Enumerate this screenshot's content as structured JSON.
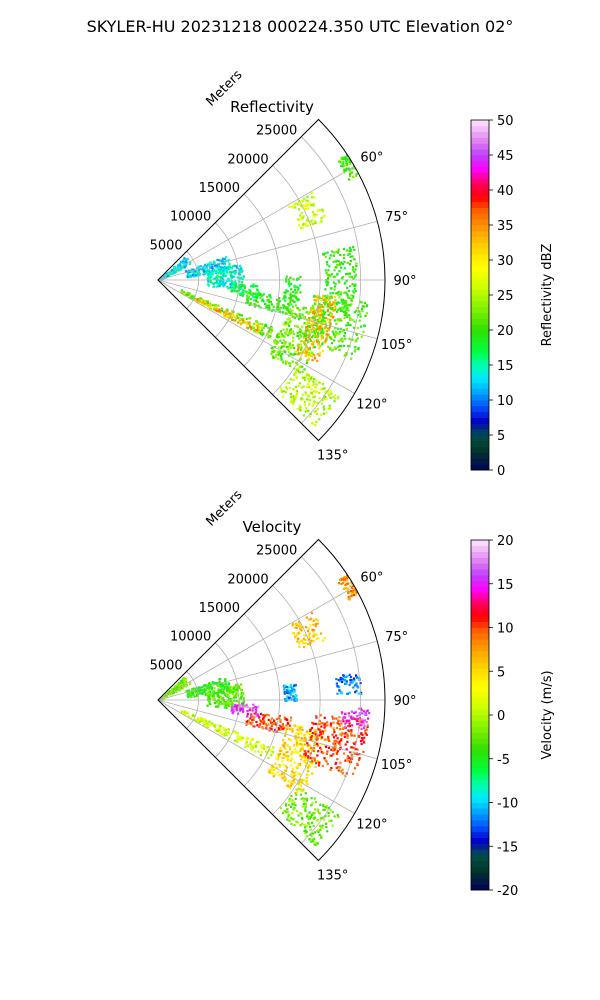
{
  "title": "SKYLER-HU  20231218  000224.350 UTC Elevation 02°",
  "chart_data": [
    {
      "type": "heatmap",
      "subtype": "polar-sector radar PPI",
      "title": "Reflectivity",
      "range_label": "Meters",
      "range_ticks": [
        5000,
        10000,
        15000,
        20000,
        25000
      ],
      "range_tick_labels": [
        "5000",
        "10000",
        "15000",
        "20000",
        "25000"
      ],
      "range_max": 28000,
      "azimuth_range_deg": [
        45,
        135
      ],
      "azimuth_ticks": [
        60,
        75,
        90,
        105,
        120,
        135
      ],
      "azimuth_tick_labels": [
        "60°",
        "75°",
        "90°",
        "105°",
        "120°",
        "135°"
      ],
      "colorbar": {
        "label": "Reflectivity dBZ",
        "min": 0,
        "max": 50,
        "ticks": [
          0,
          5,
          10,
          15,
          20,
          25,
          30,
          35,
          40,
          45,
          50
        ],
        "tick_labels": [
          "0",
          "5",
          "10",
          "15",
          "20",
          "25",
          "30",
          "35",
          "40",
          "45",
          "50"
        ]
      },
      "echo_regions": [
        {
          "az": [
            47,
            62
          ],
          "r": [
            0,
            4500
          ],
          "value": 13
        },
        {
          "az": [
            70,
            83
          ],
          "r": [
            3500,
            9000
          ],
          "value": 13
        },
        {
          "az": [
            78,
            96
          ],
          "r": [
            6000,
            10500
          ],
          "value": 14
        },
        {
          "az": [
            92,
            100
          ],
          "r": [
            9000,
            12500
          ],
          "value": 18
        },
        {
          "az": [
            97,
            105
          ],
          "r": [
            11000,
            16500
          ],
          "value": 20
        },
        {
          "az": [
            88,
            100
          ],
          "r": [
            15500,
            17500
          ],
          "value": 19
        },
        {
          "az": [
            112,
            118
          ],
          "r": [
            3000,
            15500
          ],
          "value": 22
        },
        {
          "az": [
            100,
            124
          ],
          "r": [
            16000,
            21000
          ],
          "value": 22
        },
        {
          "az": [
            95,
            112
          ],
          "r": [
            19000,
            26000
          ],
          "value": 21
        },
        {
          "az": [
            80,
            100
          ],
          "r": [
            20500,
            24500
          ],
          "value": 20
        },
        {
          "az": [
            122,
            133
          ],
          "r": [
            20000,
            26500
          ],
          "value": 25
        },
        {
          "az": [
            60,
            70
          ],
          "r": [
            18500,
            22000
          ],
          "value": 26
        },
        {
          "az": [
            56,
            62
          ],
          "r": [
            26500,
            28000
          ],
          "value": 21
        },
        {
          "az": [
            95,
            118
          ],
          "r": [
            19000,
            22000
          ],
          "value": 33
        },
        {
          "az": [
            114,
            118
          ],
          "r": [
            5000,
            14000
          ],
          "value": 33
        }
      ]
    },
    {
      "type": "heatmap",
      "subtype": "polar-sector radar PPI",
      "title": "Velocity",
      "range_label": "Meters",
      "range_ticks": [
        5000,
        10000,
        15000,
        20000,
        25000
      ],
      "range_tick_labels": [
        "5000",
        "10000",
        "15000",
        "20000",
        "25000"
      ],
      "range_max": 28000,
      "azimuth_range_deg": [
        45,
        135
      ],
      "azimuth_ticks": [
        60,
        75,
        90,
        105,
        120,
        135
      ],
      "azimuth_tick_labels": [
        "60°",
        "75°",
        "90°",
        "105°",
        "120°",
        "135°"
      ],
      "colorbar": {
        "label": "Velocity (m/s)",
        "min": -20,
        "max": 20,
        "ticks": [
          -20,
          -15,
          -10,
          -5,
          0,
          5,
          10,
          15,
          20
        ],
        "tick_labels": [
          "-20",
          "-15",
          "-10",
          "-5",
          "0",
          "5",
          "10",
          "15",
          "20"
        ]
      },
      "echo_regions": [
        {
          "az": [
            47,
            62
          ],
          "r": [
            0,
            4500
          ],
          "value": -2
        },
        {
          "az": [
            70,
            83
          ],
          "r": [
            3500,
            9000
          ],
          "value": -4
        },
        {
          "az": [
            78,
            96
          ],
          "r": [
            6000,
            10500
          ],
          "value": -3
        },
        {
          "az": [
            92,
            100
          ],
          "r": [
            9000,
            12500
          ],
          "value": 16
        },
        {
          "az": [
            97,
            105
          ],
          "r": [
            11000,
            16500
          ],
          "value": 10
        },
        {
          "az": [
            83,
            90
          ],
          "r": [
            15500,
            17000
          ],
          "value": -11
        },
        {
          "az": [
            112,
            118
          ],
          "r": [
            3000,
            15500
          ],
          "value": 1
        },
        {
          "az": [
            100,
            124
          ],
          "r": [
            16000,
            21000
          ],
          "value": 5
        },
        {
          "az": [
            95,
            112
          ],
          "r": [
            19000,
            26000
          ],
          "value": 10
        },
        {
          "az": [
            92,
            98
          ],
          "r": [
            22500,
            26000
          ],
          "value": 16
        },
        {
          "az": [
            82,
            88
          ],
          "r": [
            22000,
            25000
          ],
          "value": -12
        },
        {
          "az": [
            122,
            133
          ],
          "r": [
            20000,
            26500
          ],
          "value": -2
        },
        {
          "az": [
            60,
            70
          ],
          "r": [
            18500,
            22000
          ],
          "value": 6
        },
        {
          "az": [
            56,
            62
          ],
          "r": [
            26500,
            28000
          ],
          "value": 8
        }
      ]
    }
  ]
}
